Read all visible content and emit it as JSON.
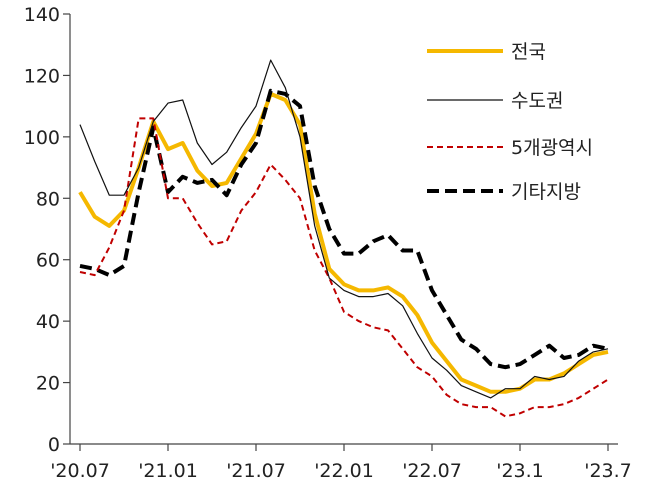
{
  "chart_data": {
    "type": "line",
    "title": "",
    "xlabel": "",
    "ylabel": "",
    "ylim": [
      0,
      140
    ],
    "yticks": [
      0,
      20,
      40,
      60,
      80,
      100,
      120,
      140
    ],
    "ytick_labels": [
      "0",
      "20",
      "40",
      "60",
      "80",
      "100",
      "120",
      "140"
    ],
    "x": [
      "2020-07",
      "2020-08",
      "2020-09",
      "2020-10",
      "2020-11",
      "2020-12",
      "2021-01",
      "2021-02",
      "2021-03",
      "2021-04",
      "2021-05",
      "2021-06",
      "2021-07",
      "2021-08",
      "2021-09",
      "2021-10",
      "2021-11",
      "2021-12",
      "2022-01",
      "2022-02",
      "2022-03",
      "2022-04",
      "2022-05",
      "2022-06",
      "2022-07",
      "2022-08",
      "2022-09",
      "2022-10",
      "2022-11",
      "2022-12",
      "2023-01",
      "2023-02",
      "2023-03",
      "2023-04",
      "2023-05",
      "2023-06",
      "2023-07"
    ],
    "xticks": [
      {
        "index": 0,
        "label": "'20.07"
      },
      {
        "index": 6,
        "label": "'21.01"
      },
      {
        "index": 12,
        "label": "'21.07"
      },
      {
        "index": 18,
        "label": "'22.01"
      },
      {
        "index": 24,
        "label": "'22.07"
      },
      {
        "index": 30,
        "label": "'23.1"
      },
      {
        "index": 36,
        "label": "'23.7"
      }
    ],
    "legend_position": "top-right",
    "series": [
      {
        "name": "전국",
        "color": "#F5B800",
        "style": "solid-thick",
        "values": [
          82,
          74,
          71,
          76,
          90,
          105,
          96,
          98,
          89,
          84,
          85,
          93,
          101,
          114,
          112,
          104,
          75,
          57,
          52,
          50,
          50,
          51,
          48,
          42,
          33,
          27,
          21,
          19,
          17,
          17,
          18,
          21,
          21,
          23,
          26,
          29,
          30
        ]
      },
      {
        "name": "수도권",
        "color": "#111111",
        "style": "solid-thin",
        "values": [
          104,
          92,
          81,
          81,
          90,
          105,
          111,
          112,
          98,
          91,
          95,
          103,
          110,
          125,
          116,
          100,
          71,
          54,
          50,
          48,
          48,
          49,
          45,
          36,
          28,
          24,
          19,
          17,
          15,
          18,
          18,
          22,
          21,
          22,
          27,
          30,
          31
        ]
      },
      {
        "name": "5개광역시",
        "color": "#C00000",
        "style": "dashed-thin",
        "values": [
          56,
          55,
          64,
          76,
          106,
          106,
          80,
          80,
          72,
          65,
          66,
          76,
          82,
          91,
          86,
          80,
          63,
          54,
          43,
          40,
          38,
          37,
          31,
          25,
          22,
          16,
          13,
          12,
          12,
          9,
          10,
          12,
          12,
          13,
          15,
          18,
          21
        ]
      },
      {
        "name": "기타지방",
        "color": "#000000",
        "style": "dashed-thick",
        "values": [
          58,
          57,
          55,
          58,
          82,
          103,
          82,
          87,
          85,
          86,
          81,
          91,
          98,
          115,
          114,
          110,
          84,
          70,
          62,
          62,
          66,
          68,
          63,
          63,
          50,
          42,
          34,
          31,
          26,
          25,
          26,
          29,
          32,
          28,
          29,
          32,
          31
        ]
      }
    ]
  }
}
